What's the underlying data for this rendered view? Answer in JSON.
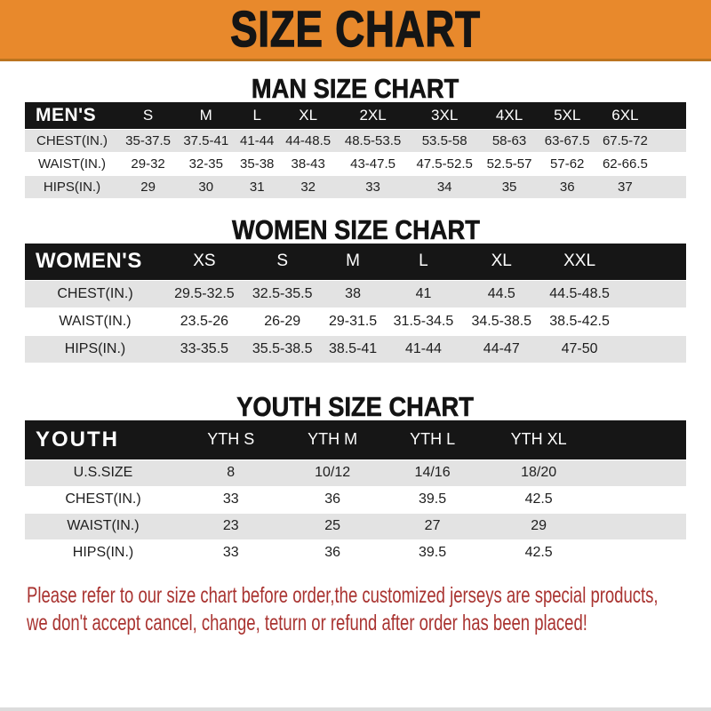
{
  "banner": {
    "title": "SIZE CHART"
  },
  "sections": [
    {
      "heading": "MAN SIZE CHART",
      "header_label": "MEN'S",
      "columns": [
        "S",
        "M",
        "L",
        "XL",
        "2XL",
        "3XL",
        "4XL",
        "5XL",
        "6XL"
      ],
      "rows": [
        {
          "label": "CHEST(IN.)",
          "values": [
            "35-37.5",
            "37.5-41",
            "41-44",
            "44-48.5",
            "48.5-53.5",
            "53.5-58",
            "58-63",
            "63-67.5",
            "67.5-72"
          ]
        },
        {
          "label": "WAIST(IN.)",
          "values": [
            "29-32",
            "32-35",
            "35-38",
            "38-43",
            "43-47.5",
            "47.5-52.5",
            "52.5-57",
            "57-62",
            "62-66.5"
          ]
        },
        {
          "label": "HIPS(IN.)",
          "values": [
            "29",
            "30",
            "31",
            "32",
            "33",
            "34",
            "35",
            "36",
            "37"
          ]
        }
      ]
    },
    {
      "heading": "WOMEN SIZE CHART",
      "header_label": "WOMEN'S",
      "columns": [
        "XS",
        "S",
        "M",
        "L",
        "XL",
        "XXL"
      ],
      "rows": [
        {
          "label": "CHEST(IN.)",
          "values": [
            "29.5-32.5",
            "32.5-35.5",
            "38",
            "41",
            "44.5",
            "44.5-48.5"
          ]
        },
        {
          "label": "WAIST(IN.)",
          "values": [
            "23.5-26",
            "26-29",
            "29-31.5",
            "31.5-34.5",
            "34.5-38.5",
            "38.5-42.5"
          ]
        },
        {
          "label": "HIPS(IN.)",
          "values": [
            "33-35.5",
            "35.5-38.5",
            "38.5-41",
            "41-44",
            "44-47",
            "47-50"
          ]
        }
      ]
    },
    {
      "heading": "YOUTH SIZE CHART",
      "header_label": "YOUTH",
      "columns": [
        "YTH S",
        "YTH M",
        "YTH L",
        "YTH XL"
      ],
      "rows": [
        {
          "label": "U.S.SIZE",
          "values": [
            "8",
            "10/12",
            "14/16",
            "18/20"
          ]
        },
        {
          "label": "CHEST(IN.)",
          "values": [
            "33",
            "36",
            "39.5",
            "42.5"
          ]
        },
        {
          "label": "WAIST(IN.)",
          "values": [
            "23",
            "25",
            "27",
            "29"
          ]
        },
        {
          "label": "HIPS(IN.)",
          "values": [
            "33",
            "36",
            "39.5",
            "42.5"
          ]
        }
      ]
    }
  ],
  "footer": {
    "line1": "Please refer to our size chart before order,the customized jerseys are special products,",
    "line2": "we don't accept cancel, change, teturn or refund after order has been placed!"
  },
  "colors": {
    "banner_orange": "#E8892C",
    "header_black": "#161616",
    "row_gray": "#E3E3E3",
    "note_red": "#A93330"
  }
}
